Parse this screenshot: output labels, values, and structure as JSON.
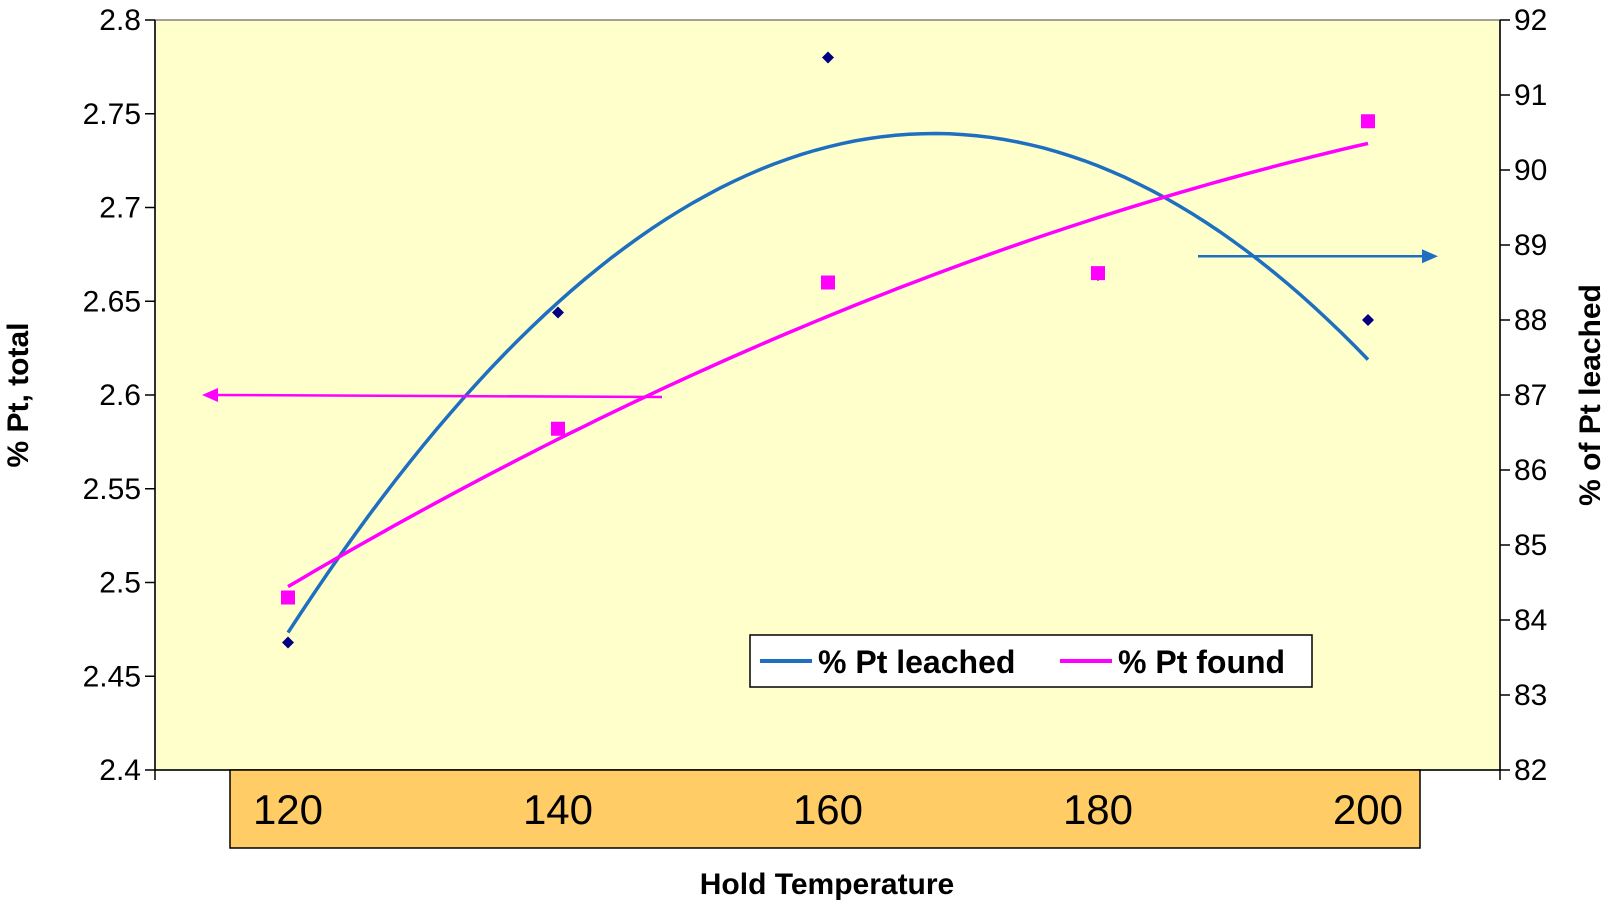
{
  "chart_data": {
    "type": "scatter",
    "xlabel": "Hold Temperature",
    "ylabel_left": "% Pt, total",
    "ylabel_right": "% of Pt leached",
    "categories": [
      "120",
      "140",
      "160",
      "180",
      "200"
    ],
    "y_left": {
      "range": [
        2.4,
        2.8
      ],
      "ticks": [
        "2.4",
        "2.45",
        "2.5",
        "2.55",
        "2.6",
        "2.65",
        "2.7",
        "2.75",
        "2.8"
      ]
    },
    "y_right": {
      "range": [
        82,
        92
      ],
      "ticks": [
        "82",
        "83",
        "84",
        "85",
        "86",
        "87",
        "88",
        "89",
        "90",
        "91",
        "92"
      ]
    },
    "series": [
      {
        "name": "% Pt leached",
        "axis": "right",
        "marker": "diamond",
        "marker_color": "#000080",
        "trend_color": "#1f6fc0",
        "trend": "polynomial",
        "values": [
          83.7,
          88.1,
          91.5,
          88.6,
          88.0
        ]
      },
      {
        "name": "% Pt found",
        "axis": "left",
        "marker": "square",
        "marker_color": "#ff00ff",
        "trend_color": "#ff00ff",
        "trend": "polynomial",
        "values": [
          2.492,
          2.582,
          2.66,
          2.665,
          2.746
        ]
      }
    ],
    "annotations": [
      {
        "type": "arrow",
        "direction": "left",
        "color": "#ff00ff",
        "meaning": "left axis"
      },
      {
        "type": "arrow",
        "direction": "right",
        "color": "#1f6fc0",
        "meaning": "right axis"
      }
    ],
    "colors": {
      "plot_background": "#ffffcc",
      "category_band": "#ffcc66"
    },
    "legend_position": "bottom-right",
    "grid": false
  }
}
